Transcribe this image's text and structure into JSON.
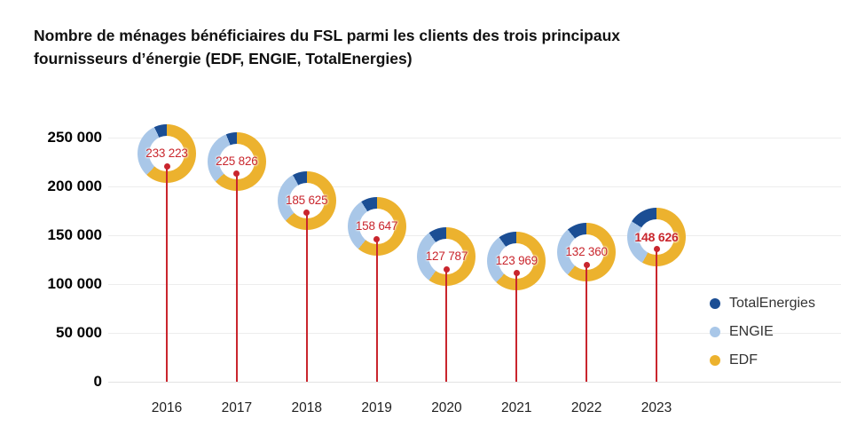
{
  "title": "Nombre de ménages bénéficiaires du FSL parmi les clients des trois principaux fournisseurs d’énergie (EDF, ENGIE, TotalEnergies)",
  "colors": {
    "totalenergies": "#1b4e94",
    "engie": "#a9c7e8",
    "edf": "#ecb22e",
    "stem_red": "#c9252d",
    "value_red": "#c9262d",
    "grid": "#ededed",
    "axis_text": "#000000",
    "legend_text": "#333333"
  },
  "chart_data": {
    "type": "lollipop-donut",
    "title": "Nombre de ménages bénéficiaires du FSL parmi les clients des trois principaux fournisseurs d’énergie (EDF, ENGIE, TotalEnergies)",
    "xlabel": "",
    "ylabel": "",
    "grid": "horizontal",
    "legend_position": "right",
    "ylim": [
      0,
      262000
    ],
    "yticks": [
      {
        "value": 0,
        "label": "0"
      },
      {
        "value": 50000,
        "label": "50 000"
      },
      {
        "value": 100000,
        "label": "100 000"
      },
      {
        "value": 150000,
        "label": "150 000"
      },
      {
        "value": 200000,
        "label": "200 000"
      },
      {
        "value": 250000,
        "label": "250 000"
      }
    ],
    "categories": [
      "2016",
      "2017",
      "2018",
      "2019",
      "2020",
      "2021",
      "2022",
      "2023"
    ],
    "values": [
      233223,
      225826,
      185625,
      158647,
      127787,
      123969,
      132360,
      148626
    ],
    "value_labels": [
      "233 223",
      "225 826",
      "185 625",
      "158 647",
      "127 787",
      "123 969",
      "132 360",
      "148 626"
    ],
    "highlight_index": 7,
    "donut_shares_pct": [
      {
        "edf": 62,
        "engie": 31,
        "totalenergies": 7
      },
      {
        "edf": 63,
        "engie": 31,
        "totalenergies": 6
      },
      {
        "edf": 63,
        "engie": 29,
        "totalenergies": 8
      },
      {
        "edf": 61,
        "engie": 30,
        "totalenergies": 9
      },
      {
        "edf": 60,
        "engie": 30,
        "totalenergies": 10
      },
      {
        "edf": 62,
        "engie": 28,
        "totalenergies": 10
      },
      {
        "edf": 61,
        "engie": 28,
        "totalenergies": 11
      },
      {
        "edf": 58,
        "engie": 26,
        "totalenergies": 16
      }
    ],
    "legend": [
      {
        "key": "totalenergies",
        "label": "TotalEnergies"
      },
      {
        "key": "engie",
        "label": "ENGIE"
      },
      {
        "key": "edf",
        "label": "EDF"
      }
    ]
  }
}
